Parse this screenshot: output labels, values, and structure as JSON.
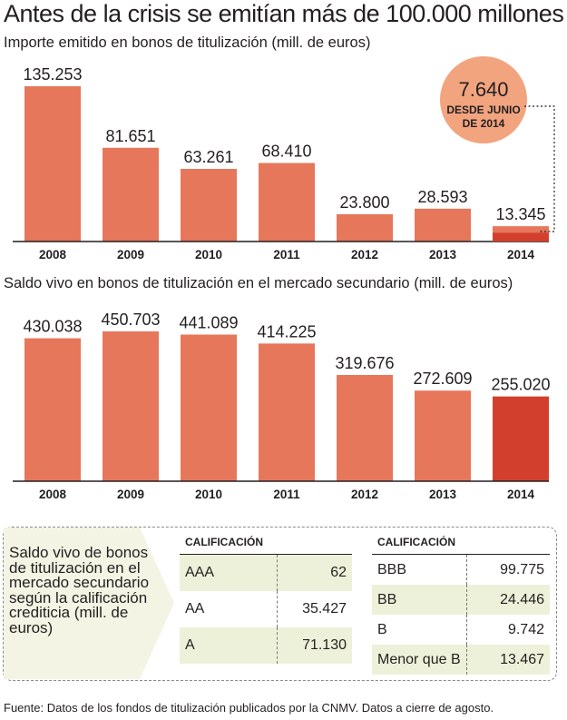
{
  "title": "Antes de la crisis se emitían más de 100.000 millones",
  "colors": {
    "bar": "#e6775b",
    "bar_highlight": "#d2402d",
    "circle": "#f2a47f",
    "table_shade": "#eef1d9",
    "panel_bg": "#f3f4e4"
  },
  "chart_data": [
    {
      "type": "bar",
      "title": "Importe emitido en bonos de titulización (mill. de euros)",
      "categories": [
        "2008",
        "2009",
        "2010",
        "2011",
        "2012",
        "2013",
        "2014"
      ],
      "values": [
        135253,
        81651,
        63261,
        68410,
        23800,
        28593,
        13345
      ],
      "value_labels": [
        "135.253",
        "81.651",
        "63.261",
        "68.410",
        "23.800",
        "28.593",
        "13.345"
      ],
      "highlight": {
        "category": "2014",
        "value": 7640
      },
      "annotation": {
        "value_label": "7.640",
        "line1": "DESDE JUNIO",
        "line2": "DE 2014"
      }
    },
    {
      "type": "bar",
      "title": "Saldo vivo en bonos de titulización en el mercado secundario (mill. de euros)",
      "categories": [
        "2008",
        "2009",
        "2010",
        "2011",
        "2012",
        "2013",
        "2014"
      ],
      "values": [
        430038,
        450703,
        441089,
        414225,
        319676,
        272609,
        255020
      ],
      "value_labels": [
        "430.038",
        "450.703",
        "441.089",
        "414.225",
        "319.676",
        "272.609",
        "255.020"
      ],
      "highlight_last": true
    },
    {
      "type": "table",
      "description": "Saldo vivo de bonos de titulización en el mercado secundario según la calificación crediticia (mill. de euros)",
      "header": "CALIFICACIÓN",
      "rows": [
        {
          "rating": "AAA",
          "value": "62"
        },
        {
          "rating": "AA",
          "value": "35.427"
        },
        {
          "rating": "A",
          "value": "71.130"
        },
        {
          "rating": "BBB",
          "value": "99.775"
        },
        {
          "rating": "BB",
          "value": "24.446"
        },
        {
          "rating": "B",
          "value": "9.742"
        },
        {
          "rating": "Menor que B",
          "value": "13.467"
        }
      ]
    }
  ],
  "source": "Fuente: Datos de los fondos de titulización publicados por la CNMV. Datos a cierre de agosto."
}
